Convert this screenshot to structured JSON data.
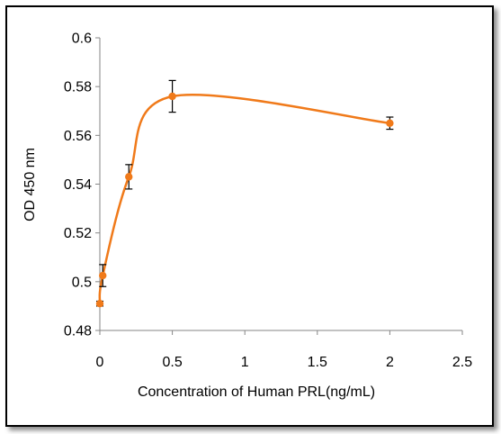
{
  "chart_data": {
    "type": "scatter",
    "title": "",
    "xlabel": "Concentration of Human PRL(ng/mL)",
    "ylabel": "OD 450 nm",
    "xlim": [
      0,
      2.5
    ],
    "ylim": [
      0.48,
      0.6
    ],
    "x_ticks": [
      0,
      0.5,
      1,
      1.5,
      2,
      2.5
    ],
    "x_tick_labels": [
      "0",
      "0.5",
      "1",
      "1.5",
      "2",
      "2.5"
    ],
    "y_ticks": [
      0.48,
      0.5,
      0.52,
      0.54,
      0.56,
      0.58,
      0.6
    ],
    "y_tick_labels": [
      "0.48",
      "0.5",
      "0.52",
      "0.54",
      "0.56",
      "0.58",
      "0.6"
    ],
    "grid": false,
    "legend": "none",
    "smoothed_line": true,
    "series": [
      {
        "color": "#f07a1a",
        "x": [
          0,
          0.02,
          0.2,
          0.5,
          2
        ],
        "y": [
          0.491,
          0.5025,
          0.543,
          0.576,
          0.565
        ],
        "error": [
          0.001,
          0.0045,
          0.005,
          0.0065,
          0.0025
        ]
      }
    ]
  }
}
